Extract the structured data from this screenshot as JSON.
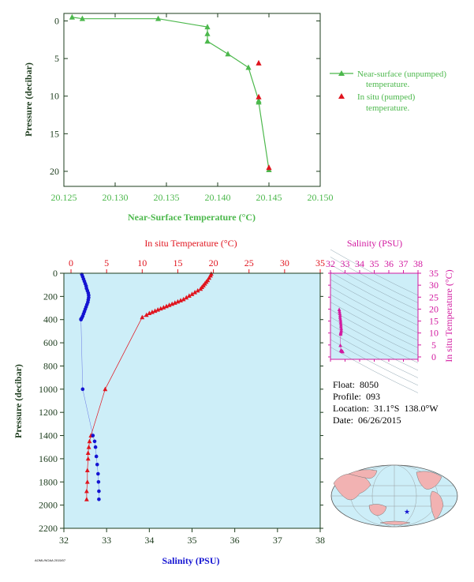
{
  "colors": {
    "green": "#4cb84c",
    "red": "#e0141e",
    "blue": "#1414d2",
    "magenta": "#d21aa0",
    "panel_bg": "#cdeef8",
    "axis_dark": "#1d3c1d",
    "land": "#f2b2b2",
    "ocean": "#cdeef8"
  },
  "info": {
    "float": "Float:  8050",
    "profile": "Profile:  093",
    "location": "Location:  31.1°S  138.0°W",
    "date": "Date:  06/26/2015"
  },
  "footnote": "AOML/NOAA 2015/07",
  "map": {
    "star_icon": "star-marker-icon"
  },
  "chart_data": [
    {
      "type": "line",
      "xlabel": "Near-Surface Temperature (°C)",
      "ylabel": "Pressure (decibar)",
      "xlim": [
        20.125,
        20.15
      ],
      "ylim": [
        22,
        -1
      ],
      "xticks": [
        20.125,
        20.13,
        20.135,
        20.14,
        20.145,
        20.15
      ],
      "xtick_labels": [
        "20.125",
        "20.130",
        "20.135",
        "20.140",
        "20.145",
        "20.150"
      ],
      "yticks": [
        0,
        5,
        10,
        15,
        20
      ],
      "ytick_labels": [
        "0",
        "5",
        "10",
        "15",
        "20"
      ],
      "legend_position": "right",
      "series": [
        {
          "name": "Near-surface (unpumped) temperature.",
          "legend_lines": [
            "Near-surface (unpumped)",
            "temperature."
          ],
          "color": "#4cb84c",
          "marker": "triangle",
          "line": true,
          "x": [
            20.1258,
            20.1268,
            20.1342,
            20.139,
            20.139,
            20.139,
            20.141,
            20.143,
            20.144,
            20.144,
            20.145
          ],
          "y": [
            -0.5,
            -0.3,
            -0.3,
            0.8,
            1.7,
            2.7,
            4.4,
            6.2,
            10.6,
            10.8,
            19.8
          ]
        },
        {
          "name": "In situ (pumped) temperature.",
          "legend_lines": [
            "In situ (pumped)",
            "temperature."
          ],
          "color": "#e0141e",
          "marker": "triangle",
          "line": false,
          "x": [
            20.144,
            20.144,
            20.145
          ],
          "y": [
            5.6,
            10.1,
            19.5
          ]
        }
      ]
    },
    {
      "type": "line",
      "title_top": "In situ Temperature (°C)",
      "xlabel_bottom": "Salinity (PSU)",
      "ylabel": "Pressure (decibar)",
      "salinity_lim": [
        32,
        38
      ],
      "temperature_lim": [
        -1,
        35
      ],
      "pressure_lim": [
        2200,
        0
      ],
      "salinity_ticks": [
        "32",
        "33",
        "34",
        "35",
        "36",
        "37",
        "38"
      ],
      "temperature_ticks": [
        "0",
        "5",
        "10",
        "15",
        "20",
        "25",
        "30",
        "35"
      ],
      "pressure_ticks": [
        "0",
        "200",
        "400",
        "600",
        "800",
        "1000",
        "1200",
        "1400",
        "1600",
        "1800",
        "2000",
        "2200"
      ],
      "series": [
        {
          "name": "Temperature",
          "color": "#e0141e",
          "marker": "triangle",
          "axis": "temperature",
          "x": [
            19.7,
            19.6,
            19.4,
            19.2,
            19.0,
            18.8,
            18.6,
            18.4,
            18.2,
            17.8,
            17.4,
            17.0,
            16.6,
            16.2,
            15.8,
            15.4,
            15.0,
            14.6,
            14.2,
            13.8,
            13.4,
            13.0,
            12.6,
            12.2,
            11.8,
            11.4,
            11.0,
            10.6,
            10.0,
            4.8,
            2.8,
            2.6,
            2.5,
            2.4,
            2.4,
            2.3,
            2.3,
            2.2,
            2.2
          ],
          "y": [
            5,
            20,
            40,
            60,
            75,
            90,
            105,
            120,
            135,
            150,
            165,
            180,
            195,
            210,
            225,
            235,
            245,
            255,
            265,
            275,
            285,
            295,
            305,
            315,
            325,
            335,
            345,
            360,
            380,
            1000,
            1400,
            1450,
            1500,
            1550,
            1600,
            1700,
            1800,
            1880,
            1950
          ]
        },
        {
          "name": "Salinity",
          "color": "#1414d2",
          "marker": "circle",
          "axis": "salinity",
          "x": [
            32.42,
            32.44,
            32.46,
            32.48,
            32.5,
            32.52,
            32.53,
            32.55,
            32.57,
            32.58,
            32.58,
            32.57,
            32.56,
            32.54,
            32.52,
            32.5,
            32.48,
            32.46,
            32.44,
            32.42,
            32.4,
            32.4,
            32.44,
            32.68,
            32.72,
            32.74,
            32.76,
            32.78,
            32.8,
            32.81,
            32.82,
            32.82
          ],
          "y": [
            10,
            30,
            50,
            70,
            90,
            110,
            130,
            150,
            170,
            190,
            210,
            230,
            250,
            270,
            290,
            310,
            330,
            350,
            370,
            385,
            395,
            400,
            1000,
            1400,
            1450,
            1500,
            1580,
            1650,
            1730,
            1800,
            1880,
            1950
          ]
        }
      ]
    },
    {
      "type": "scatter",
      "title_top": "Salinity (PSU)",
      "ylabel_right": "In situ Temperature (°C)",
      "salinity_lim": [
        32,
        38
      ],
      "temperature_lim": [
        -1,
        35
      ],
      "salinity_ticks": [
        "32",
        "33",
        "34",
        "35",
        "36",
        "37",
        "38"
      ],
      "temperature_ticks": [
        "0",
        "5",
        "10",
        "15",
        "20",
        "25",
        "30",
        "35"
      ],
      "series": [
        {
          "name": "T-S",
          "color": "#d21aa0",
          "marker": "triangle",
          "x": [
            32.6,
            32.62,
            32.64,
            32.66,
            32.66,
            32.68,
            32.7,
            32.7,
            32.72,
            32.72,
            32.74,
            32.74,
            32.72,
            32.7,
            32.7,
            32.68,
            32.72,
            32.74,
            32.76,
            32.78,
            32.8,
            32.82,
            32.84
          ],
          "y": [
            19.8,
            19.0,
            18.2,
            17.4,
            16.6,
            15.8,
            15.0,
            14.2,
            13.4,
            12.6,
            11.8,
            11.0,
            10.4,
            10.0,
            9.5,
            4.8,
            2.8,
            2.6,
            2.5,
            2.4,
            2.3,
            2.2,
            2.2
          ]
        }
      ]
    }
  ]
}
